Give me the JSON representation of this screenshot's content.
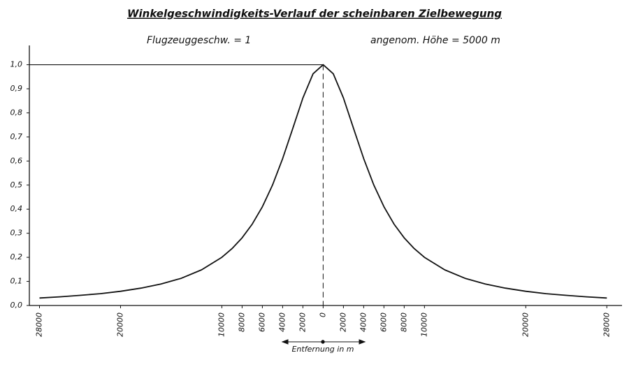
{
  "chart_data": {
    "type": "line",
    "title": "Winkelgeschwindigkeits-Verlauf der scheinbaren Zielbewegung",
    "annotations": [
      "Flugzeuggeschw. = 1",
      "angenom. Höhe = 5000 m"
    ],
    "x_label": "Entfernung in m",
    "x": [
      -28000,
      -26000,
      -24000,
      -22000,
      -20000,
      -18000,
      -16000,
      -14000,
      -12000,
      -10000,
      -9000,
      -8000,
      -7000,
      -6000,
      -5000,
      -4000,
      -3000,
      -2000,
      -1000,
      0,
      1000,
      2000,
      3000,
      4000,
      5000,
      6000,
      7000,
      8000,
      9000,
      10000,
      12000,
      14000,
      16000,
      18000,
      20000,
      22000,
      24000,
      26000,
      28000
    ],
    "values": [
      0.031,
      0.036,
      0.042,
      0.049,
      0.059,
      0.072,
      0.089,
      0.113,
      0.148,
      0.2,
      0.236,
      0.281,
      0.338,
      0.41,
      0.5,
      0.61,
      0.735,
      0.862,
      0.962,
      1.0,
      0.962,
      0.862,
      0.735,
      0.61,
      0.5,
      0.41,
      0.338,
      0.281,
      0.236,
      0.2,
      0.148,
      0.113,
      0.089,
      0.072,
      0.059,
      0.049,
      0.042,
      0.036,
      0.031
    ],
    "color": "#111111",
    "xlim": [
      -29000,
      29500
    ],
    "ylim": [
      0,
      1.08
    ],
    "xticks": [
      {
        "value": -28000,
        "label": "28000"
      },
      {
        "value": -20000,
        "label": "20000"
      },
      {
        "value": -10000,
        "label": "10000"
      },
      {
        "value": -8000,
        "label": "8000"
      },
      {
        "value": -6000,
        "label": "6000"
      },
      {
        "value": -4000,
        "label": "4000"
      },
      {
        "value": -2000,
        "label": "2000"
      },
      0,
      2000,
      4000,
      6000,
      8000,
      10000,
      20000,
      28000
    ],
    "yticks": [
      {
        "value": 0,
        "label": "0,0"
      },
      {
        "value": 0.1,
        "label": "0,1"
      },
      {
        "value": 0.2,
        "label": "0,2"
      },
      {
        "value": 0.3,
        "label": "0,3"
      },
      {
        "value": 0.4,
        "label": "0,4"
      },
      {
        "value": 0.5,
        "label": "0,5"
      },
      {
        "value": 0.6,
        "label": "0,6"
      },
      {
        "value": 0.7,
        "label": "0,7"
      },
      {
        "value": 0.8,
        "label": "0,8"
      },
      {
        "value": 0.9,
        "label": "0,9"
      },
      {
        "value": 1.0,
        "label": "1,0"
      }
    ]
  }
}
